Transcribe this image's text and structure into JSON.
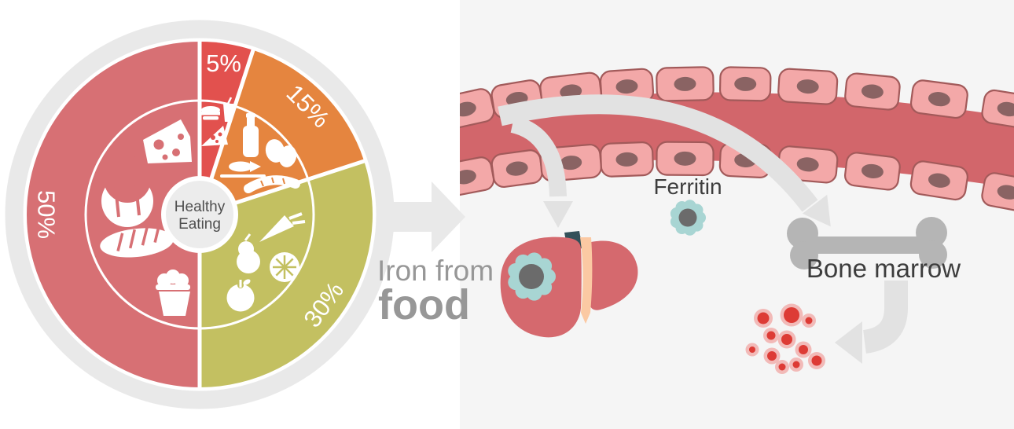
{
  "pie": {
    "center_title": {
      "line1": "Healthy",
      "line2": "Eating"
    },
    "segments": [
      {
        "label": "5%",
        "value": 5,
        "color": "#e2514e",
        "icons": [
          "fast-food-drink",
          "pizza-slice"
        ]
      },
      {
        "label": "15%",
        "value": 15,
        "color": "#e5853f",
        "icons": [
          "milk-bottle",
          "eggs",
          "fish",
          "sausage"
        ]
      },
      {
        "label": "30%",
        "value": 30,
        "color": "#c3c061",
        "icons": [
          "carrot",
          "pear",
          "orange-slice",
          "apple"
        ]
      },
      {
        "label": "50%",
        "value": 50,
        "color": "#d77074",
        "icons": [
          "cheese",
          "croissant",
          "bread",
          "cupcake"
        ]
      }
    ]
  },
  "chart_data": {
    "type": "pie",
    "title": "Healthy Eating",
    "categories": [
      "5%",
      "15%",
      "30%",
      "50%"
    ],
    "values": [
      5,
      15,
      30,
      50
    ],
    "colors": [
      "#e2514e",
      "#e5853f",
      "#c3c061",
      "#d77074"
    ],
    "start_angle_deg": 0,
    "direction": "clockwise",
    "legend": "none"
  },
  "diagram": {
    "flow_label_line1": "Iron from",
    "flow_label_line2": "food",
    "ferritin_label": "Ferritin",
    "bone_marrow_label": "Bone marrow"
  },
  "colors": {
    "background_right": "#f5f5f5",
    "ring_gray": "#e9e9e9",
    "arrow_gray": "#e2e2e2",
    "big_arrow_gray": "#e9e9e9",
    "vessel_interior": "#d2666b",
    "vessel_cell": "#f3a8a8",
    "vessel_cell_border": "#a25a5a",
    "vessel_cell_nucleus": "#8a6363",
    "liver": "#d5696e",
    "liver_division": "#fbc9a3",
    "liver_vein": "#335059",
    "ferritin_petal": "#a8d5d3",
    "ferritin_core": "#6b6b6b",
    "bone": "#b5b5b5",
    "red_blood_cell": "#dd3b35",
    "red_blood_cell_halo": "#f2bab8",
    "percent_label": "#ffffff",
    "center_circle": "#ececec",
    "text_dark": "#3d3d3d",
    "text_gray": "#979797",
    "center_text": "#4f4f4f"
  }
}
